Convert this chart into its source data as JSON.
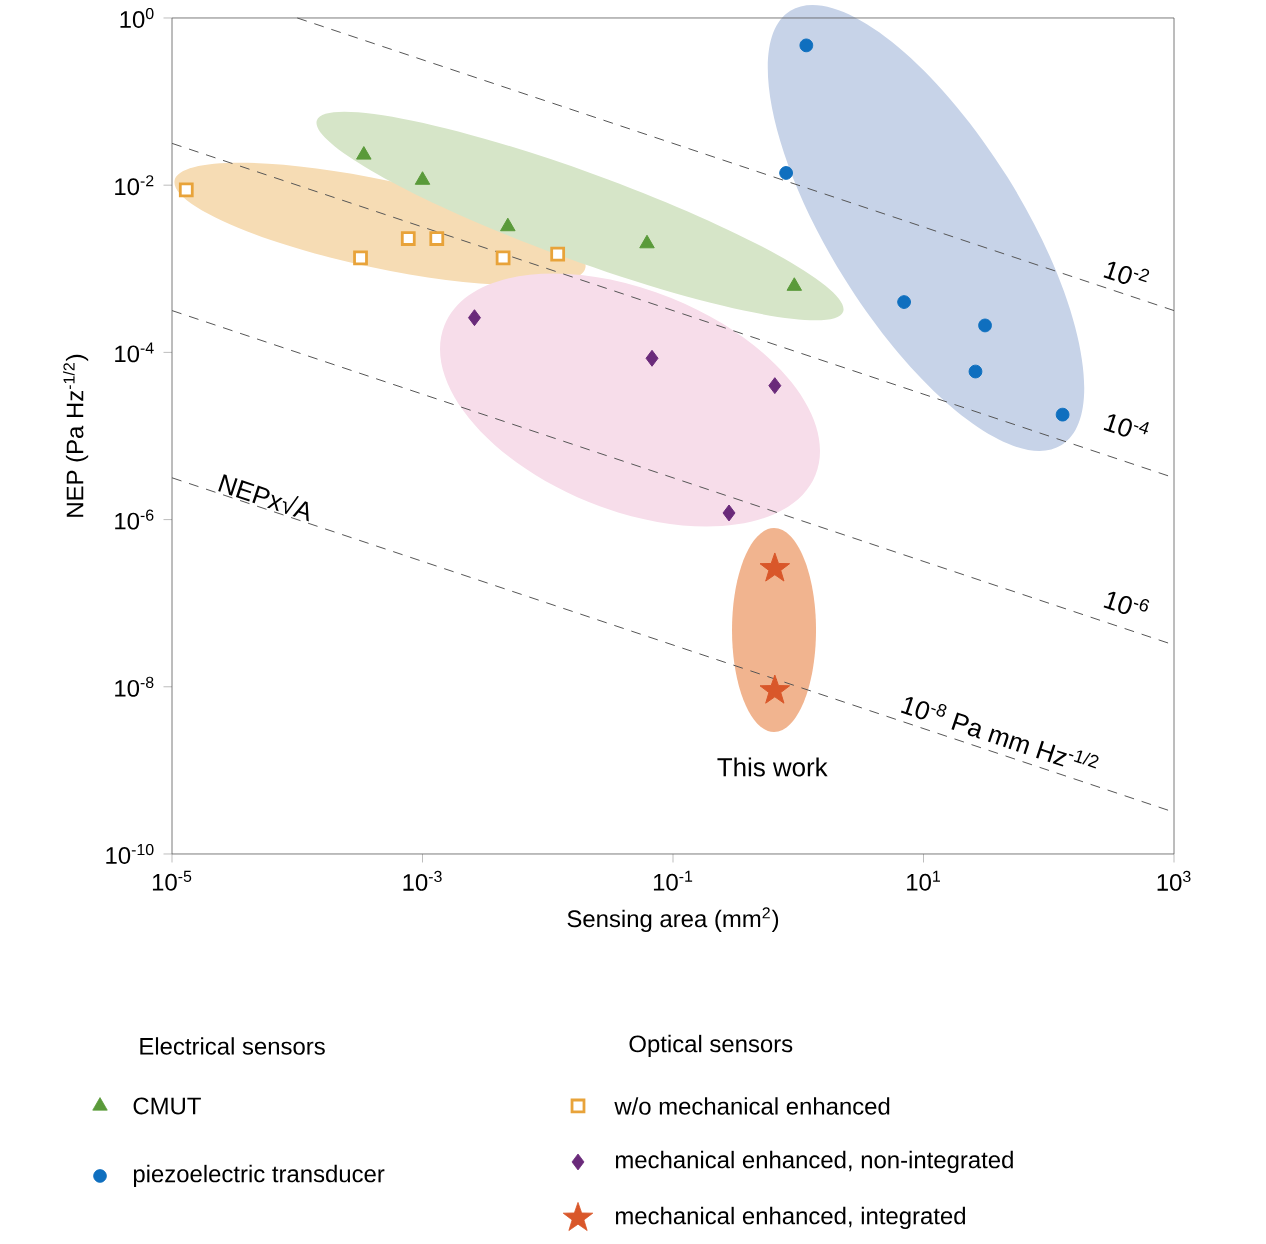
{
  "chart_data": {
    "type": "scatter",
    "xlabel": "Sensing area (mm$^{2}$)",
    "ylabel": "NEP (Pa Hz$^{-1/2}$)",
    "log": "xy",
    "xlim": [
      1e-05,
      1000
    ],
    "ylim": [
      1e-10,
      1
    ],
    "xticks": [
      {
        "value": 1e-05,
        "label": "10$^{-5}$"
      },
      {
        "value": 0.001,
        "label": "10$^{-3}$"
      },
      {
        "value": 0.1,
        "label": "10$^{-1}$"
      },
      {
        "value": 10,
        "label": "10$^{1}$"
      },
      {
        "value": 1000,
        "label": "10$^{3}$"
      }
    ],
    "yticks": [
      {
        "value": 1e-10,
        "label": "10$^{-10}$"
      },
      {
        "value": 1e-08,
        "label": "10$^{-8}$"
      },
      {
        "value": 1e-06,
        "label": "10$^{-6}$"
      },
      {
        "value": 0.0001,
        "label": "10$^{-4}$"
      },
      {
        "value": 0.01,
        "label": "10$^{-2}$"
      },
      {
        "value": 1,
        "label": "10$^{0}$"
      }
    ],
    "legend": "bottom",
    "series": [
      {
        "name": "CMUT",
        "color": "#5a9a3a",
        "marker": "triangle",
        "x": [
          0.00034,
          0.001,
          0.0048,
          0.062,
          0.93
        ],
        "values": [
          0.023,
          0.0115,
          0.0032,
          0.002,
          0.00062
        ]
      },
      {
        "name": "piezoelectric transducer",
        "color": "#0f6fbf",
        "marker": "circle",
        "x": [
          1.16,
          0.8,
          7,
          31,
          26,
          129
        ],
        "values": [
          0.47,
          0.014,
          0.0004,
          0.00021,
          5.9e-05,
          1.8e-05
        ]
      },
      {
        "name": "w/o mechanical enhanced",
        "color": "#e8a33a",
        "marker": "square",
        "x": [
          1.3e-05,
          0.00032,
          0.00077,
          0.0013,
          0.0044,
          0.012
        ],
        "values": [
          0.0088,
          0.00135,
          0.0023,
          0.0023,
          0.00135,
          0.0015
        ]
      },
      {
        "name": "mechanical enhanced, non-integrated",
        "color": "#6a2a7a",
        "marker": "diamond",
        "x": [
          0.0026,
          0.068,
          0.65,
          0.28
        ],
        "values": [
          0.00026,
          8.5e-05,
          4e-05,
          1.2e-06
        ]
      },
      {
        "name": "mechanical enhanced, integrated",
        "color": "#d9572a",
        "marker": "star",
        "x": [
          0.65,
          0.65
        ],
        "values": [
          2.6e-07,
          9e-09
        ]
      },
      {
        "type": "line",
        "color": "#555555",
        "line_style": "dashed",
        "x": [
          0.0001,
          1000
        ],
        "values": [
          1,
          0.0003162
        ]
      },
      {
        "type": "line",
        "color": "#555555",
        "line_style": "dashed",
        "x": [
          1e-05,
          1000
        ],
        "values": [
          0.03162,
          3.162e-06
        ]
      },
      {
        "type": "line",
        "color": "#555555",
        "line_style": "dashed",
        "x": [
          1e-05,
          1000
        ],
        "values": [
          0.0003162,
          3.162e-08
        ]
      },
      {
        "type": "line",
        "color": "#555555",
        "line_style": "dashed",
        "x": [
          1e-05,
          1000
        ],
        "values": [
          3.162e-06,
          3.162e-10
        ]
      }
    ],
    "annotations": [
      "Electrical sensors",
      "Optical sensors",
      "NEPx√A",
      "10$^{-2}$",
      "10$^{-4}$",
      "10$^{-6}$",
      "10$^{-8}$ Pa mm Hz$^{-1/2}$",
      "This work"
    ]
  }
}
